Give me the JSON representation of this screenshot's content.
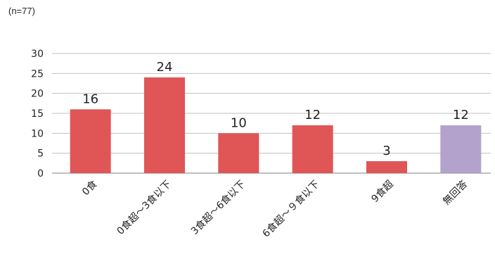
{
  "note": "(n=77)",
  "colors": {
    "main": "#e05555",
    "other": "#b3a2cc",
    "grid": "#c0c0c0",
    "axis": "#808080",
    "text": "#222222"
  },
  "chart_data": {
    "type": "bar",
    "categories": [
      "0食",
      "0食超～3食以下",
      "3食超～6食以下",
      "6食超～９食以下",
      "9食超",
      "無回答"
    ],
    "values": [
      16,
      24,
      10,
      12,
      3,
      12
    ],
    "value_labels": [
      "16",
      "24",
      "10",
      "12",
      "3",
      "12"
    ],
    "bar_colors": [
      "#e05555",
      "#e05555",
      "#e05555",
      "#e05555",
      "#e05555",
      "#b3a2cc"
    ],
    "yticks": [
      0,
      5,
      10,
      15,
      20,
      25,
      30
    ],
    "ylim": [
      0,
      30
    ],
    "grid": true,
    "legend": "none"
  }
}
